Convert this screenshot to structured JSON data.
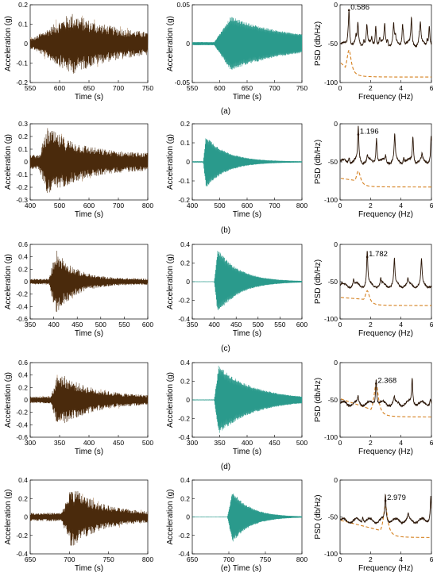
{
  "colors": {
    "raw": "#4a2a0c",
    "raw_light": "#b08a66",
    "filtered": "#2a9a8c",
    "psd": "#2a1506",
    "model": "#d5801f",
    "axis": "#000000"
  },
  "rows": [
    {
      "caption": "(a)",
      "raw": {
        "xlabel": "Time (s)",
        "ylabel": "Acceleration (g)",
        "xlim": [
          550,
          750
        ],
        "ylim": [
          -0.2,
          0.2
        ],
        "xticks": [
          "550",
          "600",
          "650",
          "700",
          "750"
        ],
        "yticks": [
          "-0.2",
          "-0.1",
          "0",
          "0.1",
          "0.2"
        ],
        "onset": 555,
        "peak_time": 620,
        "peak_amp": 0.14,
        "decay_s": 90,
        "floor": 0.025
      },
      "filtered": {
        "xlabel": "Time (s)",
        "ylabel": "Acceleration (g)",
        "xlim": [
          550,
          750
        ],
        "ylim": [
          -0.05,
          0.05
        ],
        "xticks": [
          "550",
          "600",
          "650",
          "700",
          "750"
        ],
        "yticks": [
          "-0.05",
          "0",
          "0.05"
        ],
        "onset": 590,
        "peak_time": 620,
        "peak_amp": 0.035,
        "decay_s": 110,
        "floor": 0.002
      },
      "psd": {
        "xlabel": "Frequency (Hz)",
        "ylabel": "PSD (db/Hz)",
        "xlim": [
          0,
          6
        ],
        "ylim": [
          -100,
          0
        ],
        "xticks": [
          "0",
          "2",
          "4",
          "6"
        ],
        "yticks": [
          "-100",
          "-50",
          "0"
        ],
        "peak_freq": 0.586,
        "peak_label": "0.586",
        "peak_db": -7,
        "baseline_db": -52,
        "model_floor_db": -93,
        "model_peak_db": -58
      }
    },
    {
      "caption": "(b)",
      "raw": {
        "xlabel": "Time (s)",
        "ylabel": "Acceleration (g)",
        "xlim": [
          400,
          800
        ],
        "ylim": [
          -0.3,
          0.3
        ],
        "xticks": [
          "400",
          "500",
          "600",
          "700",
          "800"
        ],
        "yticks": [
          "-0.3",
          "-0.2",
          "-0.1",
          "0",
          "0.1",
          "0.2",
          "0.3"
        ],
        "onset": 430,
        "peak_time": 460,
        "peak_amp": 0.24,
        "decay_s": 120,
        "floor": 0.05
      },
      "filtered": {
        "xlabel": "Time (s)",
        "ylabel": "Acceleration (g)",
        "xlim": [
          400,
          800
        ],
        "ylim": [
          -0.2,
          0.2
        ],
        "xticks": [
          "400",
          "500",
          "600",
          "700",
          "800"
        ],
        "yticks": [
          "-0.2",
          "-0.1",
          "0",
          "0.1",
          "0.2"
        ],
        "onset": 440,
        "peak_time": 450,
        "peak_amp": 0.14,
        "decay_s": 75,
        "floor": 0.002
      },
      "psd": {
        "xlabel": "Frequency (Hz)",
        "ylabel": "PSD (db/Hz)",
        "xlim": [
          0,
          6
        ],
        "ylim": [
          -100,
          0
        ],
        "xticks": [
          "0",
          "2",
          "4",
          "6"
        ],
        "yticks": [
          "-100",
          "-50",
          "0"
        ],
        "peak_freq": 1.196,
        "peak_label": "1.196",
        "peak_db": -14,
        "baseline_db": -50,
        "model_floor_db": -83,
        "model_peak_db": -62
      }
    },
    {
      "caption": "(c)",
      "raw": {
        "xlabel": "Time (s)",
        "ylabel": "Acceleration (g)",
        "xlim": [
          350,
          600
        ],
        "ylim": [
          -0.6,
          0.6
        ],
        "xticks": [
          "350",
          "400",
          "450",
          "500",
          "550",
          "600"
        ],
        "yticks": [
          "-0.6",
          "-0.4",
          "-0.2",
          "0",
          "0.2",
          "0.4",
          "0.6"
        ],
        "onset": 390,
        "peak_time": 405,
        "peak_amp": 0.47,
        "decay_s": 40,
        "floor": 0.04
      },
      "filtered": {
        "xlabel": "Time (s)",
        "ylabel": "Acceleration (g)",
        "xlim": [
          350,
          600
        ],
        "ylim": [
          -0.4,
          0.4
        ],
        "xticks": [
          "350",
          "400",
          "450",
          "500",
          "550",
          "600"
        ],
        "yticks": [
          "-0.4",
          "-0.2",
          "0",
          "0.2",
          "0.4"
        ],
        "onset": 400,
        "peak_time": 408,
        "peak_amp": 0.35,
        "decay_s": 50,
        "floor": 0.001
      },
      "psd": {
        "xlabel": "Frequency (Hz)",
        "ylabel": "PSD (db/Hz)",
        "xlim": [
          0,
          6
        ],
        "ylim": [
          -100,
          0
        ],
        "xticks": [
          "0",
          "2",
          "4",
          "6"
        ],
        "yticks": [
          "-100",
          "-50",
          "0"
        ],
        "peak_freq": 1.782,
        "peak_label": "1.782",
        "peak_db": -17,
        "baseline_db": -55,
        "model_floor_db": -82,
        "model_peak_db": -62
      }
    },
    {
      "caption": "(d)",
      "raw": {
        "xlabel": "Time (s)",
        "ylabel": "Acceleration (g)",
        "xlim": [
          300,
          500
        ],
        "ylim": [
          -0.6,
          0.6
        ],
        "xticks": [
          "300",
          "350",
          "400",
          "450",
          "500"
        ],
        "yticks": [
          "-0.6",
          "-0.4",
          "-0.2",
          "0",
          "0.2",
          "0.4",
          "0.6"
        ],
        "onset": 335,
        "peak_time": 348,
        "peak_amp": 0.4,
        "decay_s": 55,
        "floor": 0.05
      },
      "filtered": {
        "xlabel": "Time (s)",
        "ylabel": "Acceleration (g)",
        "xlim": [
          300,
          500
        ],
        "ylim": [
          -0.4,
          0.4
        ],
        "xticks": [
          "300",
          "350",
          "400",
          "450",
          "500"
        ],
        "yticks": [
          "-0.4",
          "-0.2",
          "0",
          "0.2",
          "0.4"
        ],
        "onset": 340,
        "peak_time": 348,
        "peak_amp": 0.37,
        "decay_s": 65,
        "floor": 0.002
      },
      "psd": {
        "xlabel": "Frequency (Hz)",
        "ylabel": "PSD (db/Hz)",
        "xlim": [
          0,
          6
        ],
        "ylim": [
          -100,
          0
        ],
        "xticks": [
          "0",
          "2",
          "4",
          "6"
        ],
        "yticks": [
          "-100",
          "-50",
          "0"
        ],
        "peak_freq": 2.368,
        "peak_label": "2.368",
        "peak_db": -28,
        "baseline_db": -55,
        "model_floor_db": -73,
        "model_peak_db": -28
      }
    },
    {
      "caption": "(e)",
      "raw": {
        "xlabel": "Time (s)",
        "ylabel": "Acceleration (g)",
        "xlim": [
          650,
          800
        ],
        "ylim": [
          -0.4,
          0.4
        ],
        "xticks": [
          "650",
          "700",
          "750",
          "800"
        ],
        "yticks": [
          "-0.4",
          "-0.2",
          "0",
          "0.2",
          "0.4"
        ],
        "onset": 690,
        "peak_time": 703,
        "peak_amp": 0.3,
        "decay_s": 35,
        "floor": 0.04
      },
      "filtered": {
        "xlabel": "Time (s)",
        "ylabel": "Acceleration (g)",
        "xlim": [
          650,
          800
        ],
        "ylim": [
          -0.4,
          0.4
        ],
        "xticks": [
          "650",
          "700",
          "750",
          "800"
        ],
        "yticks": [
          "-0.4",
          "-0.2",
          "0",
          "0.2",
          "0.4"
        ],
        "onset": 698,
        "peak_time": 705,
        "peak_amp": 0.28,
        "decay_s": 25,
        "floor": 0.001
      },
      "psd": {
        "xlabel": "Frequency (Hz)",
        "ylabel": "PSD (db/Hz)",
        "xlim": [
          0,
          6
        ],
        "ylim": [
          -100,
          0
        ],
        "xticks": [
          "0",
          "2",
          "4",
          "6"
        ],
        "yticks": [
          "-100",
          "-50",
          "0"
        ],
        "peak_freq": 2.979,
        "peak_label": "2.979",
        "peak_db": -28,
        "baseline_db": -55,
        "model_floor_db": -78,
        "model_peak_db": -35
      }
    }
  ],
  "chart_data": [
    {
      "type": "line",
      "panel": "a-raw",
      "xlabel": "Time (s)",
      "ylabel": "Acceleration (g)",
      "xlim": [
        550,
        750
      ],
      "ylim": [
        -0.2,
        0.2
      ]
    },
    {
      "type": "line",
      "panel": "a-filtered",
      "xlabel": "Time (s)",
      "ylabel": "Acceleration (g)",
      "xlim": [
        550,
        750
      ],
      "ylim": [
        -0.05,
        0.05
      ]
    },
    {
      "type": "line",
      "panel": "a-psd",
      "xlabel": "Frequency (Hz)",
      "ylabel": "PSD (db/Hz)",
      "xlim": [
        0,
        6
      ],
      "ylim": [
        -100,
        0
      ],
      "annotations": [
        "0.586"
      ],
      "peak": {
        "x": 0.586,
        "y": -7
      }
    },
    {
      "type": "line",
      "panel": "b-raw",
      "xlabel": "Time (s)",
      "ylabel": "Acceleration (g)",
      "xlim": [
        400,
        800
      ],
      "ylim": [
        -0.3,
        0.3
      ]
    },
    {
      "type": "line",
      "panel": "b-filtered",
      "xlabel": "Time (s)",
      "ylabel": "Acceleration (g)",
      "xlim": [
        400,
        800
      ],
      "ylim": [
        -0.2,
        0.2
      ]
    },
    {
      "type": "line",
      "panel": "b-psd",
      "xlabel": "Frequency (Hz)",
      "ylabel": "PSD (db/Hz)",
      "xlim": [
        0,
        6
      ],
      "ylim": [
        -100,
        0
      ],
      "annotations": [
        "1.196"
      ],
      "peak": {
        "x": 1.196,
        "y": -14
      }
    },
    {
      "type": "line",
      "panel": "c-raw",
      "xlabel": "Time (s)",
      "ylabel": "Acceleration (g)",
      "xlim": [
        350,
        600
      ],
      "ylim": [
        -0.6,
        0.6
      ]
    },
    {
      "type": "line",
      "panel": "c-filtered",
      "xlabel": "Time (s)",
      "ylabel": "Acceleration (g)",
      "xlim": [
        350,
        600
      ],
      "ylim": [
        -0.4,
        0.4
      ]
    },
    {
      "type": "line",
      "panel": "c-psd",
      "xlabel": "Frequency (Hz)",
      "ylabel": "PSD (db/Hz)",
      "xlim": [
        0,
        6
      ],
      "ylim": [
        -100,
        0
      ],
      "annotations": [
        "1.782"
      ],
      "peak": {
        "x": 1.782,
        "y": -17
      }
    },
    {
      "type": "line",
      "panel": "d-raw",
      "xlabel": "Time (s)",
      "ylabel": "Acceleration (g)",
      "xlim": [
        300,
        500
      ],
      "ylim": [
        -0.6,
        0.6
      ]
    },
    {
      "type": "line",
      "panel": "d-filtered",
      "xlabel": "Time (s)",
      "ylabel": "Acceleration (g)",
      "xlim": [
        300,
        500
      ],
      "ylim": [
        -0.4,
        0.4
      ]
    },
    {
      "type": "line",
      "panel": "d-psd",
      "xlabel": "Frequency (Hz)",
      "ylabel": "PSD (db/Hz)",
      "xlim": [
        0,
        6
      ],
      "ylim": [
        -100,
        0
      ],
      "annotations": [
        "2.368"
      ],
      "peak": {
        "x": 2.368,
        "y": -28
      }
    },
    {
      "type": "line",
      "panel": "e-raw",
      "xlabel": "Time (s)",
      "ylabel": "Acceleration (g)",
      "xlim": [
        650,
        800
      ],
      "ylim": [
        -0.4,
        0.4
      ]
    },
    {
      "type": "line",
      "panel": "e-filtered",
      "xlabel": "Time (s)",
      "ylabel": "Acceleration (g)",
      "xlim": [
        650,
        800
      ],
      "ylim": [
        -0.4,
        0.4
      ]
    },
    {
      "type": "line",
      "panel": "e-psd",
      "xlabel": "Frequency (Hz)",
      "ylabel": "PSD (db/Hz)",
      "xlim": [
        0,
        6
      ],
      "ylim": [
        -100,
        0
      ],
      "annotations": [
        "2.979"
      ],
      "peak": {
        "x": 2.979,
        "y": -28
      }
    }
  ]
}
